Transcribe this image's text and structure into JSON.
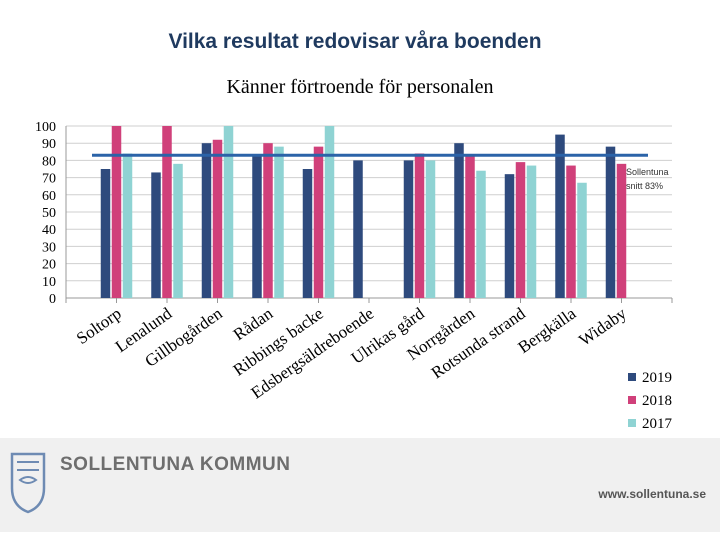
{
  "slide": {
    "title": "Vilka resultat redovisar våra boenden"
  },
  "chart_data": {
    "type": "bar",
    "title": "Känner förtroende för personalen",
    "categories": [
      "Soltorp",
      "Lenalund",
      "Gillbogården",
      "Rådan",
      "Ribbings backe",
      "Edsbergsäldreboende",
      "Ulrikas gård",
      "Norrgården",
      "Rotsunda strand",
      "Bergkälla",
      "Widaby"
    ],
    "series": [
      {
        "name": "2019",
        "color": "#2e4a7d",
        "values": [
          75,
          73,
          90,
          83,
          75,
          80,
          80,
          90,
          72,
          95,
          88
        ]
      },
      {
        "name": "2018",
        "color": "#d0407a",
        "values": [
          100,
          100,
          92,
          90,
          88,
          null,
          84,
          83,
          79,
          77,
          78
        ]
      },
      {
        "name": "2017",
        "color": "#8fd3d3",
        "values": [
          84,
          78,
          100,
          88,
          100,
          null,
          80,
          74,
          77,
          67,
          null
        ]
      }
    ],
    "reference_line": {
      "value": 83,
      "label_line1": "Sollentuna",
      "label_line2": "snitt 83%",
      "color": "#2b63a8"
    },
    "ylim": [
      0,
      100
    ],
    "yticks": [
      0,
      10,
      20,
      30,
      40,
      50,
      60,
      70,
      80,
      90,
      100
    ],
    "xlabel": "",
    "ylabel": "",
    "legend_position": "bottom-right"
  },
  "footer": {
    "brand": "SOLLENTUNA KOMMUN",
    "url": "www.sollentuna.se"
  }
}
